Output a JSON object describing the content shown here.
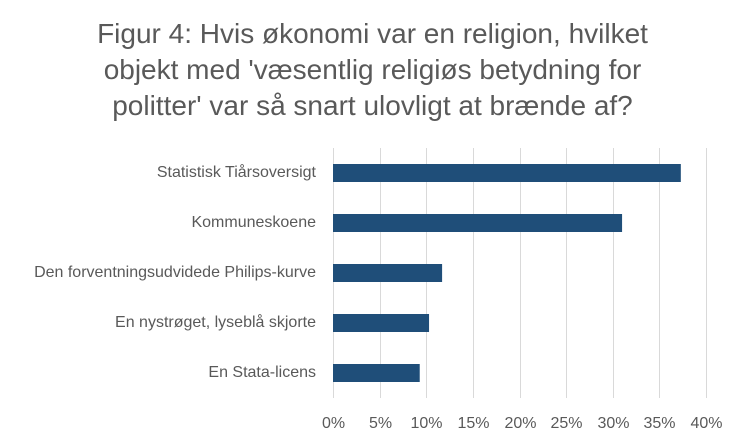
{
  "chart_data": {
    "type": "bar",
    "orientation": "horizontal",
    "title": "Figur 4: Hvis økonomi var en religion, hvilket objekt med 'væsentlig religiøs betydning for politter' var så snart ulovligt at brænde af?",
    "xlabel": "",
    "ylabel": "",
    "categories": [
      "Statistisk Tiårsoversigt",
      "Kommuneskoene",
      "Den forventningsudvidede Philips-kurve",
      "En nystrøget, lyseblå skjorte",
      "En Stata-licens"
    ],
    "values": [
      37.3,
      31.0,
      11.7,
      10.3,
      9.3
    ],
    "xlim": [
      0,
      40
    ],
    "xticks": [
      0,
      5,
      10,
      15,
      20,
      25,
      30,
      35,
      40
    ],
    "xtick_labels": [
      "0%",
      "5%",
      "10%",
      "15%",
      "20%",
      "25%",
      "30%",
      "35%",
      "40%"
    ],
    "grid": "vertical",
    "legend": "none",
    "bar_color": "#1f4e79",
    "grid_color": "#d9d9d9",
    "text_color": "#595959"
  }
}
